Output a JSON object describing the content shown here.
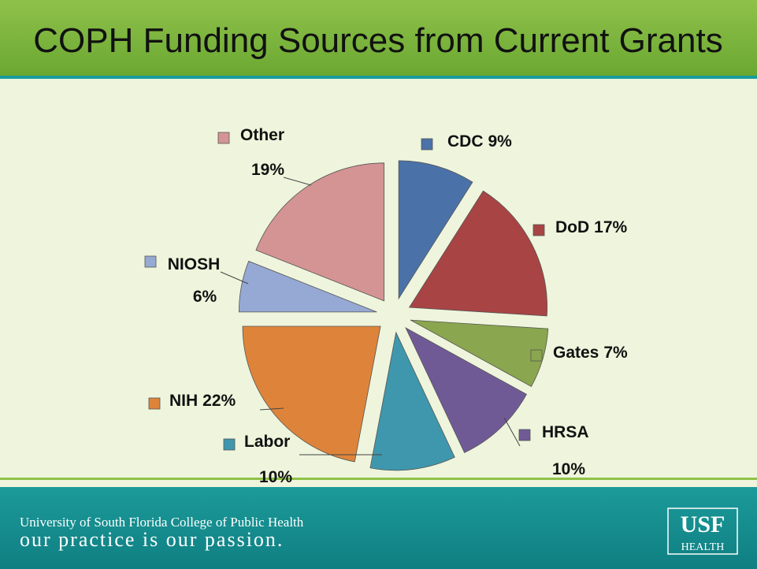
{
  "chart_data": {
    "type": "pie",
    "title": "COPH Funding Sources from Current Grants",
    "categories": [
      "CDC",
      "DoD",
      "Gates",
      "HRSA",
      "Labor",
      "NIH",
      "NIOSH",
      "Other"
    ],
    "values": [
      9,
      17,
      7,
      10,
      10,
      22,
      6,
      19
    ],
    "value_labels": [
      "9%",
      "17%",
      "7%",
      "10%",
      "10%",
      "22%",
      "6%",
      "19%"
    ],
    "colors": [
      "#4a72a8",
      "#a84444",
      "#8aa64e",
      "#705a96",
      "#3f97ad",
      "#de843a",
      "#96a9d4",
      "#d49494"
    ]
  },
  "footer": {
    "line1": "University of South Florida College of Public Health",
    "line2": "our practice is our passion.",
    "logo": "USF",
    "logo_sub": "HEALTH"
  }
}
